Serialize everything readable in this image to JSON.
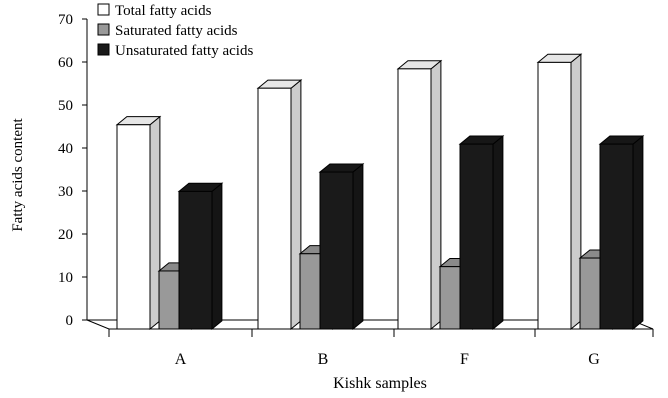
{
  "chart_data": {
    "type": "bar",
    "categories": [
      "A",
      "B",
      "F",
      "G"
    ],
    "series": [
      {
        "name": "Total fatty acids",
        "values": [
          47.5,
          56,
          60.5,
          62
        ],
        "color": "#ffffff"
      },
      {
        "name": "Saturated fatty acids",
        "values": [
          13.5,
          17.5,
          14.5,
          16.5
        ],
        "color": "#999999"
      },
      {
        "name": "Unsaturated fatty acids",
        "values": [
          32,
          36.5,
          43,
          43
        ],
        "color": "#1a1a1a"
      }
    ],
    "xlabel": "Kishk samples",
    "ylabel": "Fatty acids content",
    "ylim": [
      0,
      70
    ],
    "yticks": [
      0,
      10,
      20,
      30,
      40,
      50,
      60,
      70
    ],
    "grid": false,
    "legend_position": "top-left"
  }
}
